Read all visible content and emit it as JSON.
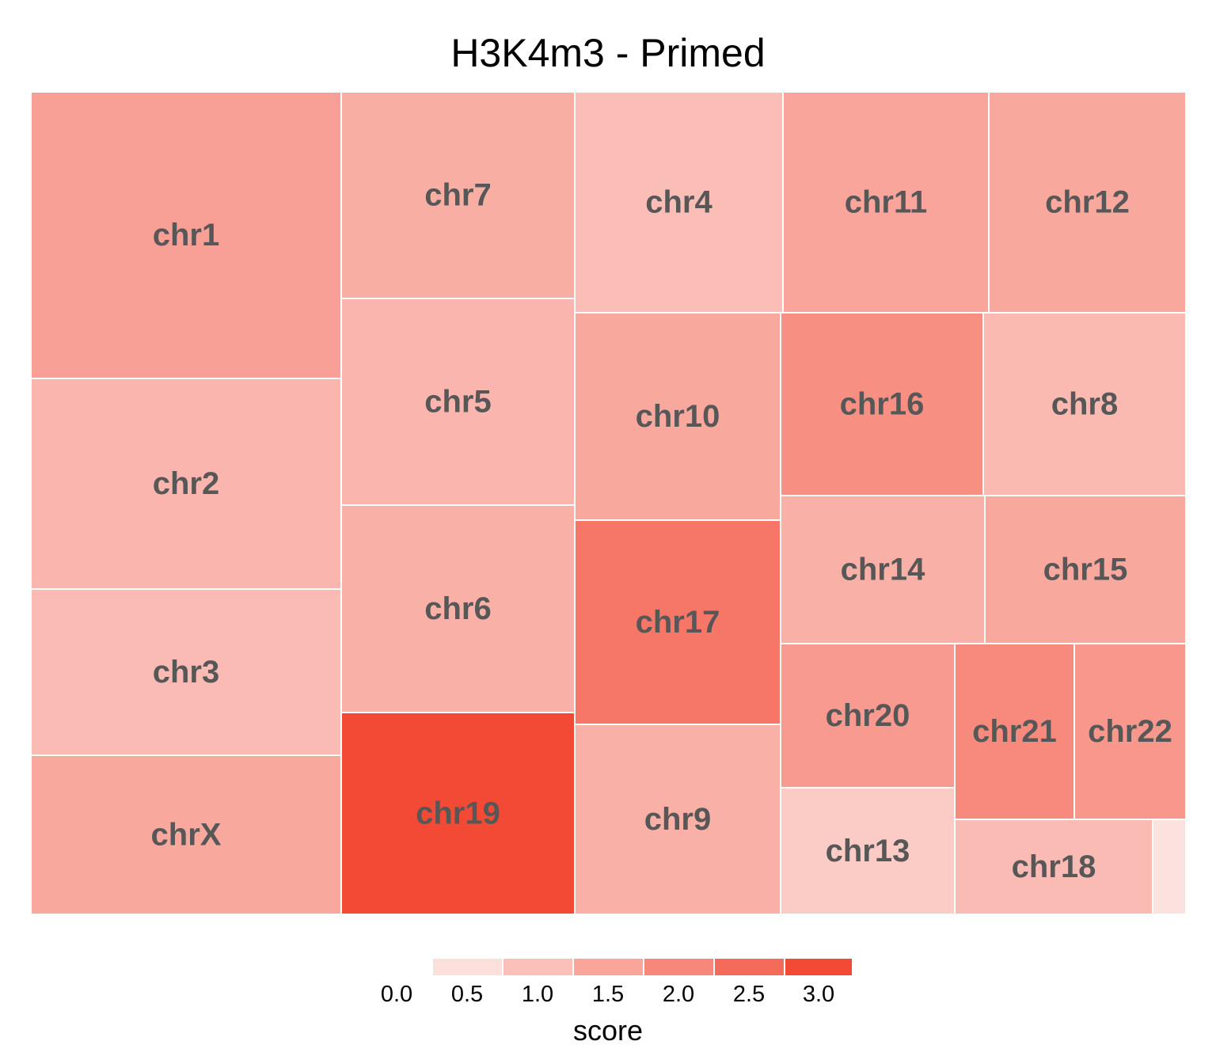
{
  "chart_data": {
    "type": "treemap",
    "title": "H3K4m3 - Primed",
    "tiles": [
      {
        "name": "chr1",
        "score": 1.45
      },
      {
        "name": "chr2",
        "score": 1.05
      },
      {
        "name": "chr3",
        "score": 0.95
      },
      {
        "name": "chrX",
        "score": 1.3
      },
      {
        "name": "chr7",
        "score": 1.2
      },
      {
        "name": "chr5",
        "score": 1.05
      },
      {
        "name": "chr6",
        "score": 1.15
      },
      {
        "name": "chr19",
        "score": 3.0
      },
      {
        "name": "chr4",
        "score": 0.9
      },
      {
        "name": "chr10",
        "score": 1.3
      },
      {
        "name": "chr17",
        "score": 2.2
      },
      {
        "name": "chr9",
        "score": 1.15
      },
      {
        "name": "chr11",
        "score": 1.35
      },
      {
        "name": "chr12",
        "score": 1.3
      },
      {
        "name": "chr16",
        "score": 1.75
      },
      {
        "name": "chr8",
        "score": 1.0
      },
      {
        "name": "chr14",
        "score": 1.15
      },
      {
        "name": "chr15",
        "score": 1.3
      },
      {
        "name": "chr20",
        "score": 1.55
      },
      {
        "name": "chr13",
        "score": 0.65
      },
      {
        "name": "chr21",
        "score": 1.85
      },
      {
        "name": "chr22",
        "score": 1.6
      },
      {
        "name": "chr18",
        "score": 0.95
      },
      {
        "name": "",
        "score": 0.25
      }
    ],
    "legend": {
      "title": "score",
      "ticks": [
        "0.0",
        "0.5",
        "1.0",
        "1.5",
        "2.0",
        "2.5",
        "3.0"
      ],
      "colors": [
        "#fde0dc",
        "#fbc1b9",
        "#f9a599",
        "#f7877a",
        "#f56b5a",
        "#f34a36"
      ]
    }
  }
}
